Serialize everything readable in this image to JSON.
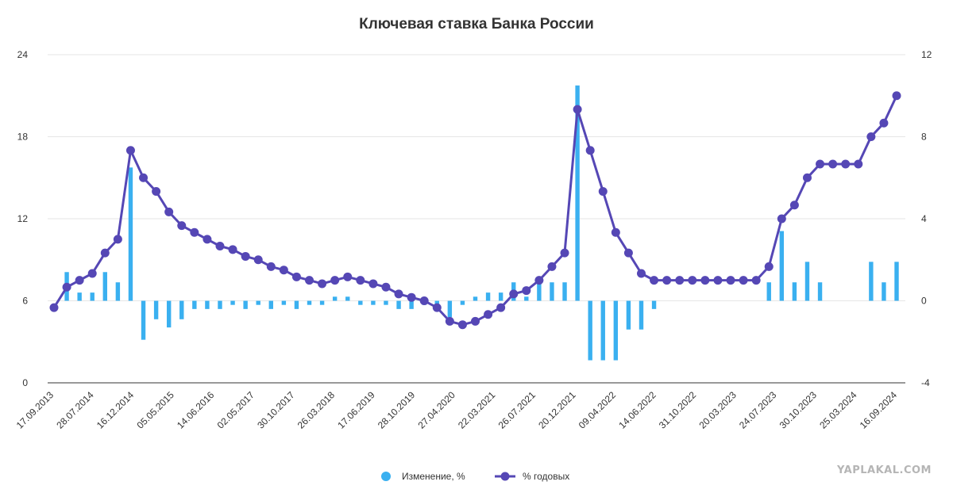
{
  "chart_data": {
    "type": "bar+line",
    "title": "Ключевая ставка Банка России",
    "left_axis": {
      "ticks": [
        "0",
        "6",
        "12",
        "18",
        "24"
      ],
      "range": [
        0,
        24
      ]
    },
    "right_axis": {
      "ticks": [
        "-4",
        "0",
        "4",
        "8",
        "12"
      ],
      "range": [
        -4,
        12
      ]
    },
    "x_tick_labels": [
      "17.09.2013",
      "28.07.2014",
      "16.12.2014",
      "05.05.2015",
      "14.06.2016",
      "02.05.2017",
      "30.10.2017",
      "26.03.2018",
      "17.06.2019",
      "28.10.2019",
      "27.04.2020",
      "22.03.2021",
      "26.07.2021",
      "20.12.2021",
      "09.04.2022",
      "14.06.2022",
      "31.10.2022",
      "20.03.2023",
      "24.07.2023",
      "30.10.2023",
      "25.03.2024",
      "16.09.2024"
    ],
    "series": [
      {
        "name": "Изменение, %",
        "type": "bar",
        "axis": "right",
        "color": "#3ab0f0",
        "values": [
          0.0,
          1.4,
          0.4,
          0.4,
          1.4,
          0.9,
          6.5,
          -1.9,
          -0.9,
          -1.3,
          -0.9,
          -0.4,
          -0.4,
          -0.4,
          -0.2,
          -0.4,
          -0.2,
          -0.4,
          -0.2,
          -0.4,
          -0.2,
          -0.2,
          0.2,
          0.2,
          -0.2,
          -0.2,
          -0.2,
          -0.4,
          -0.4,
          -0.2,
          -0.2,
          -0.8,
          -0.2,
          0.2,
          0.4,
          0.4,
          0.9,
          0.2,
          0.9,
          0.9,
          0.9,
          10.5,
          -2.9,
          -2.9,
          -2.9,
          -1.4,
          -1.4,
          -0.4,
          0.0,
          0.0,
          0.0,
          0.0,
          0.0,
          0.0,
          0.0,
          0.0,
          0.9,
          3.4,
          0.9,
          1.9,
          0.9,
          0.0,
          0.0,
          0.0,
          1.9,
          0.9,
          1.9
        ]
      },
      {
        "name": "% годовых",
        "type": "line",
        "axis": "left",
        "color": "#5547b5",
        "values": [
          5.5,
          7.0,
          7.5,
          8.0,
          9.5,
          10.5,
          17.0,
          15.0,
          14.0,
          12.5,
          11.5,
          11.0,
          10.5,
          10.0,
          9.75,
          9.25,
          9.0,
          8.5,
          8.25,
          7.75,
          7.5,
          7.25,
          7.5,
          7.75,
          7.5,
          7.25,
          7.0,
          6.5,
          6.25,
          6.0,
          5.5,
          4.5,
          4.25,
          4.5,
          5.0,
          5.5,
          6.5,
          6.75,
          7.5,
          8.5,
          9.5,
          20.0,
          17.0,
          14.0,
          11.0,
          9.5,
          8.0,
          7.5,
          7.5,
          7.5,
          7.5,
          7.5,
          7.5,
          7.5,
          7.5,
          7.5,
          8.5,
          12.0,
          13.0,
          15.0,
          16.0,
          16.0,
          16.0,
          16.0,
          18.0,
          19.0,
          21.0
        ]
      }
    ],
    "legend": {
      "position": "bottom-center",
      "items": [
        "Изменение, %",
        "% годовых"
      ]
    },
    "grid": true
  },
  "watermark": "YAPLAKAL.COM",
  "colors": {
    "bar": "#3ab0f0",
    "line": "#5547b5",
    "grid": "#e6e6e6",
    "text": "#333333"
  }
}
